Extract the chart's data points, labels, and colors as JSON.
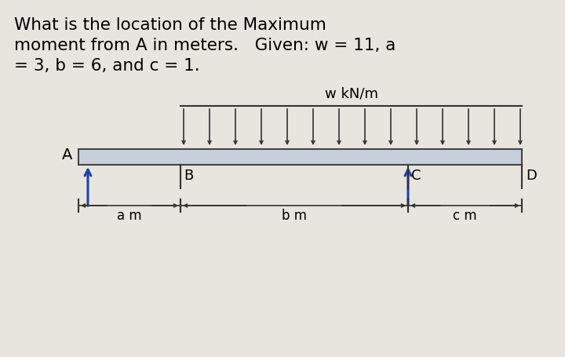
{
  "title_lines": [
    "What is the location of the Maximum",
    "moment from A in meters.   Given: w = 11, a",
    "= 3, b = 6, and c = 1."
  ],
  "load_label": "w kN/m",
  "background_color": "#e8e4de",
  "diagram_bg": "#ffffff",
  "beam_color": "#c8d0dc",
  "beam_edge_color": "#444444",
  "arrow_color": "#333333",
  "blue_color": "#1a44aa",
  "label_A": "A",
  "label_B": "B",
  "label_C": "C",
  "label_D": "D",
  "label_am": "a m",
  "label_bm": "b m",
  "label_cm": "c m",
  "num_arrows": 14,
  "title_fontsize": 15.5,
  "label_fontsize": 13
}
